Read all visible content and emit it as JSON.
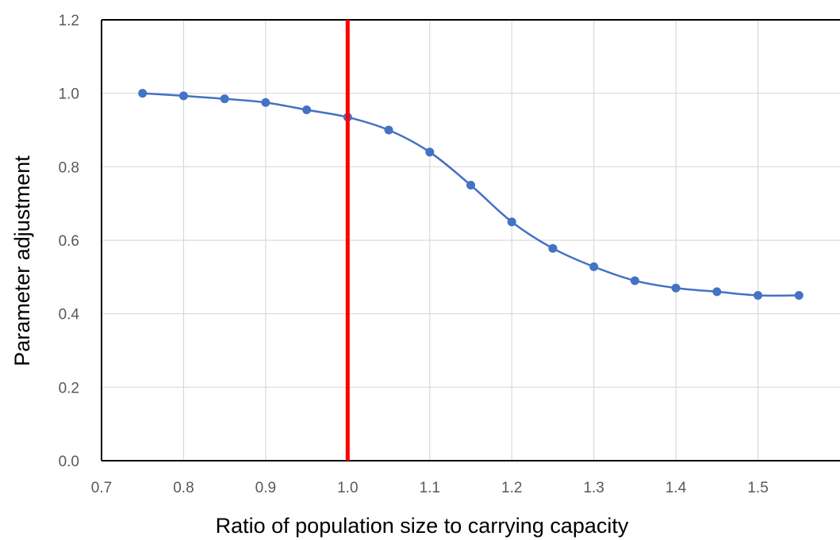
{
  "chart_data": {
    "type": "line",
    "title": "",
    "xlabel": "Ratio of population size to carrying capacity",
    "ylabel": "Parameter adjustment",
    "xlim": [
      0.7,
      1.6
    ],
    "ylim": [
      0.0,
      1.2
    ],
    "x_ticks": [
      "0.7",
      "0.8",
      "0.9",
      "1.0",
      "1.1",
      "1.2",
      "1.3",
      "1.4",
      "1.5"
    ],
    "y_ticks": [
      "0.0",
      "0.2",
      "0.4",
      "0.6",
      "0.8",
      "1.0",
      "1.2"
    ],
    "grid": true,
    "legend": "none",
    "series": [
      {
        "color": "#4472c4",
        "smooth": true,
        "markers": true,
        "x": [
          0.75,
          0.8,
          0.85,
          0.9,
          0.95,
          1.0,
          1.05,
          1.1,
          1.15,
          1.2,
          1.25,
          1.3,
          1.35,
          1.4,
          1.45,
          1.5,
          1.55
        ],
        "y": [
          1.0,
          0.993,
          0.985,
          0.975,
          0.955,
          0.935,
          0.9,
          0.84,
          0.75,
          0.65,
          0.578,
          0.528,
          0.49,
          0.47,
          0.46,
          0.45,
          0.45
        ]
      }
    ],
    "reference_line": {
      "x": 1.0,
      "color": "#ff0000",
      "orientation": "vertical"
    }
  }
}
